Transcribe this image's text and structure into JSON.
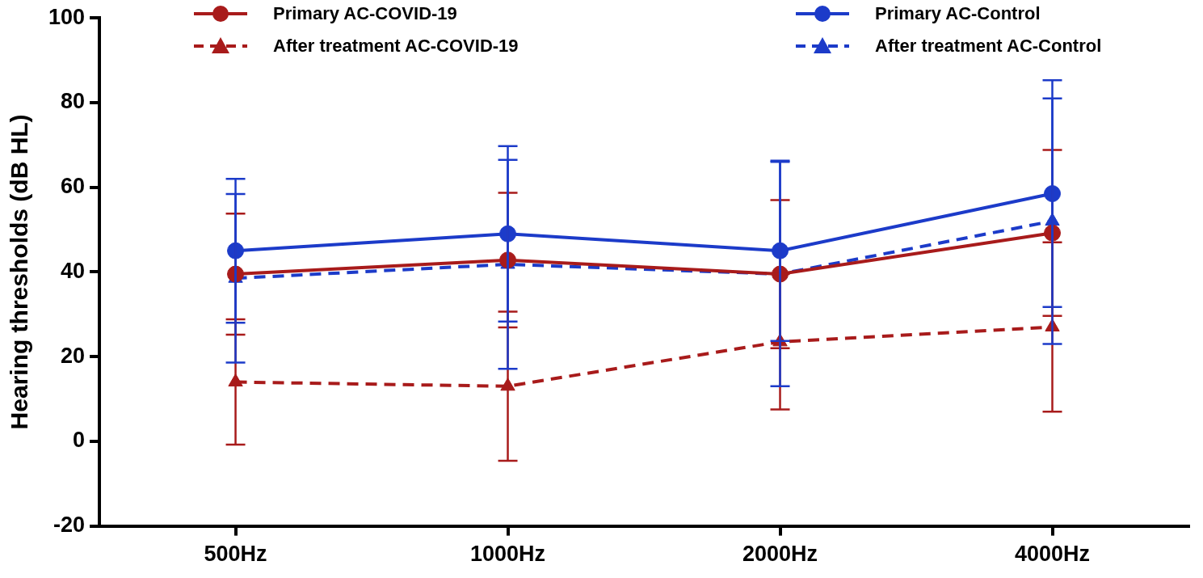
{
  "chart_data": {
    "type": "line",
    "y_label": "Hearing thresholds (dB HL)",
    "categories": [
      "500Hz",
      "1000Hz",
      "2000Hz",
      "4000Hz"
    ],
    "ylim": [
      -20,
      100
    ],
    "yticks": [
      -20,
      0,
      20,
      40,
      60,
      80,
      100
    ],
    "grid": false,
    "legend": "top",
    "series": [
      {
        "name": "Primary AC-COVID-19",
        "color": "#a81b1b",
        "marker": "circle",
        "line_style": "solid",
        "values": [
          39.5,
          42.8,
          39.5,
          49.2
        ],
        "error": [
          14.3,
          15.9,
          17.5,
          19.6
        ]
      },
      {
        "name": "Primary AC-Control",
        "color": "#1c3bc9",
        "marker": "circle",
        "line_style": "solid",
        "values": [
          45,
          49,
          45,
          58.5
        ],
        "error": [
          17,
          20.7,
          21.3,
          26.8
        ]
      },
      {
        "name": "After treatment AC-COVID-19",
        "color": "#a81b1b",
        "marker": "triangle",
        "line_style": "dashed",
        "values": [
          14,
          13,
          23.5,
          27
        ],
        "error": [
          14.8,
          17.6,
          16,
          20
        ]
      },
      {
        "name": "After treatment AC-Control",
        "color": "#1c3bc9",
        "marker": "triangle",
        "line_style": "dashed",
        "values": [
          38.5,
          41.8,
          39.5,
          52
        ],
        "error": [
          19.9,
          24.7,
          26.5,
          29
        ]
      }
    ]
  }
}
